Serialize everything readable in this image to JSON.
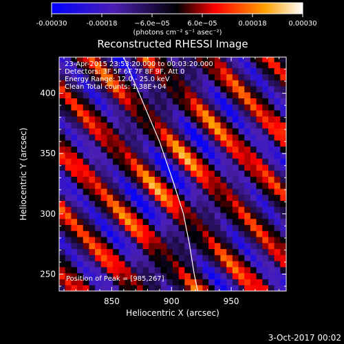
{
  "colorbar": {
    "ticks": [
      "-0.00030",
      "-0.00018",
      "−6.0e−05",
      "6.0e−05",
      "0.00018",
      "0.00030"
    ],
    "tick_values": [
      -0.0003,
      -0.00018,
      -6e-05,
      6e-05,
      0.00018,
      0.0003
    ],
    "range": [
      -0.0003,
      0.0003
    ],
    "unit_label": "(photons cm⁻² s⁻¹ asec⁻²)"
  },
  "chart_data": {
    "type": "heatmap",
    "title": "Reconstructed RHESSI Image",
    "xlabel": "Heliocentric X (arcsec)",
    "ylabel": "Heliocentric Y (arcsec)",
    "xlim": [
      806,
      996
    ],
    "ylim": [
      236,
      430
    ],
    "xticks": [
      850,
      900,
      950
    ],
    "yticks": [
      250,
      300,
      350,
      400
    ],
    "annotations": [
      "23-Apr-2015 23:53:20.000 to 00:03:20.000",
      "Detectors: 3F 5F 6F 7F 8F 9F, Att 0",
      "Energy Range: 12.0 - 25.0 keV",
      "Clean     Total counts: 1.38E+04"
    ],
    "peak_label": "Position of Peak = [985,267]",
    "peak": [
      985,
      267
    ],
    "limb_curve": [
      [
        860,
        430
      ],
      [
        875,
        395
      ],
      [
        890,
        360
      ],
      [
        902,
        325
      ],
      [
        910,
        300
      ],
      [
        915,
        275
      ],
      [
        919,
        250
      ],
      [
        922,
        236
      ]
    ],
    "colormap": [
      "#0000ff",
      "#4b1fb4",
      "#000000",
      "#ff0000",
      "#ffa000",
      "#ffffff"
    ]
  },
  "timestamp": "3-Oct-2017 00:02"
}
